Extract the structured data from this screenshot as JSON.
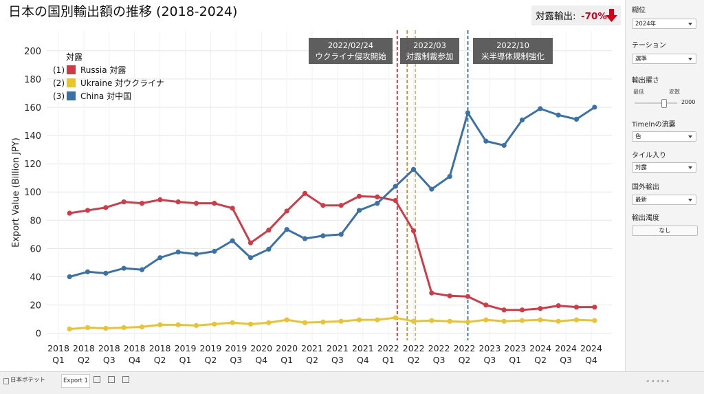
{
  "chart_data": {
    "type": "line",
    "title": "日本の国別輸出額の推移 (2018-2024)",
    "y_label": "Export Value (Billion JPY)",
    "categories": [
      null,
      null,
      null,
      null,
      null,
      null,
      null,
      null,
      null,
      null,
      null,
      null,
      null,
      null,
      null,
      null,
      null,
      null,
      null,
      null,
      null,
      null,
      null,
      null,
      null,
      null,
      null,
      null,
      null,
      null
    ],
    "xtick_labels": [
      [
        "2018",
        "Q1"
      ],
      [
        "2018",
        "Q2"
      ],
      [
        "2018",
        "Q3"
      ],
      [
        "2018",
        "Q4"
      ],
      [
        "2018",
        "Q2"
      ],
      [
        "2019",
        "Q1"
      ],
      [
        "2019",
        "Q2"
      ],
      [
        "2019",
        "Q3"
      ],
      [
        "2020",
        "Q4"
      ],
      [
        "2020",
        "Q1"
      ],
      [
        "2021",
        "Q2"
      ],
      [
        "2021",
        "Q3"
      ],
      [
        "2021",
        "Q4"
      ],
      [
        "2022",
        "Q1"
      ],
      [
        "2022",
        "Q2"
      ],
      [
        "2022",
        "Q3"
      ],
      [
        "2022",
        "Q2"
      ],
      [
        "2023",
        "Q3"
      ],
      [
        "2023",
        "Q1"
      ],
      [
        "2024",
        "Q2"
      ],
      [
        "2024",
        "Q3"
      ],
      [
        "2024",
        "Q4"
      ]
    ],
    "ylim": [
      -6,
      214
    ],
    "yticks": [
      0,
      20,
      40,
      60,
      80,
      100,
      120,
      140,
      160,
      180,
      200
    ],
    "grid": true,
    "legend_title": "対露",
    "series": [
      {
        "prefix": "(1)",
        "name": "Russia 対露",
        "color": "#d13b47",
        "values": [
          85,
          87,
          89,
          93,
          92,
          94.5,
          93,
          92,
          92,
          88.5,
          64,
          73,
          86.5,
          99,
          90.5,
          90.5,
          97,
          96.5,
          94,
          72.5,
          28.5,
          26.5,
          26,
          20,
          16.5,
          16.5,
          17.5,
          19.5,
          18.5,
          18.5
        ]
      },
      {
        "prefix": "(2)",
        "name": "Ukraine 対ウクライナ",
        "color": "#e9c42f",
        "values": [
          3,
          4,
          3.5,
          4,
          4.5,
          6,
          6,
          5.5,
          6.5,
          7.5,
          6.5,
          7.5,
          9.5,
          7.5,
          8,
          8.5,
          9.5,
          9.5,
          11,
          8.5,
          9,
          8.5,
          8,
          9.5,
          8.5,
          9,
          9.5,
          8.5,
          9.5,
          9
        ]
      },
      {
        "prefix": "(3)",
        "name": "China 対中国",
        "color": "#3a72a8",
        "values": [
          40,
          43.5,
          42.5,
          46,
          45,
          53.5,
          57.5,
          56,
          58,
          65.5,
          53.5,
          59.5,
          73.5,
          67,
          69,
          70,
          87,
          92,
          104,
          116,
          102,
          111,
          156,
          136,
          133,
          151,
          159,
          154.5,
          151.5,
          160
        ]
      }
    ],
    "events": [
      {
        "x": 18.1,
        "color": "#c0272d",
        "label": [
          "2022/02/24",
          "ウクライナ侵攻開始"
        ]
      },
      {
        "x": 18.65,
        "color": "#d98a1e",
        "label": [
          "2022/03",
          "対露制裁参加"
        ]
      },
      {
        "x": 19.1,
        "color": "#d98a1e"
      },
      {
        "x": 22,
        "color": "#2b6bb0",
        "label": [
          "2022/10",
          "米半導体規制強化"
        ]
      }
    ]
  },
  "badge": {
    "label": "対露輸出:",
    "value": "-70%"
  },
  "sidebar": {
    "controls": [
      {
        "label": "糊位",
        "value": "2024年"
      },
      {
        "label": "テーション",
        "value": "選準"
      },
      {
        "label": "輸出擢さ",
        "min_label": "最低",
        "max_label": "変数",
        "value": 2000
      },
      {
        "label": "Timelnの流嚢",
        "value": "色"
      },
      {
        "label": "タイル入り",
        "value": "対露"
      },
      {
        "label": "国外輸出",
        "value": "最新"
      },
      {
        "label": "輸出濁度",
        "button": "なし"
      }
    ]
  },
  "tabs": {
    "sheet": "日本ボテット",
    "active": "Export 1"
  }
}
